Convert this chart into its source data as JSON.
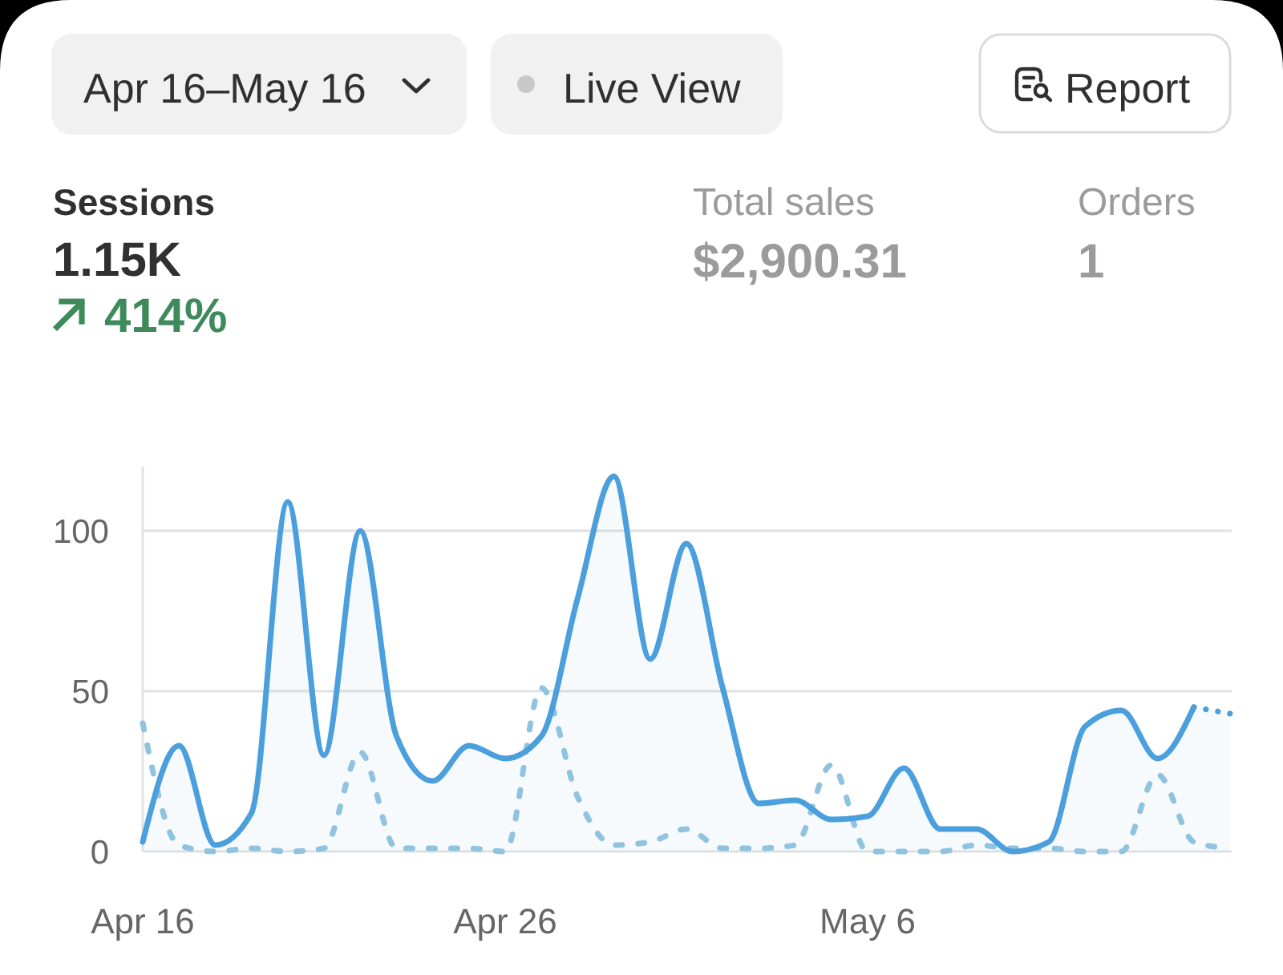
{
  "chart_data": {
    "type": "line",
    "title": "Sessions",
    "annotations": [
      "Apr 16–May 16",
      "Live View",
      "Report",
      "1.15K",
      "414%",
      "Total sales",
      "$2,900.31",
      "Orders",
      "1"
    ],
    "x": [
      "--04-16",
      "--04-17",
      "--04-18",
      "--04-19",
      "--04-20",
      "--04-21",
      "--04-22",
      "--04-23",
      "--04-24",
      "--04-25",
      "--04-26",
      "--04-27",
      "--04-28",
      "--04-29",
      "--04-30",
      "--05-01",
      "--05-02",
      "--05-03",
      "--05-04",
      "--05-05",
      "--05-06",
      "--05-07",
      "--05-08",
      "--05-09",
      "--05-10",
      "--05-11",
      "--05-12",
      "--05-13",
      "--05-14",
      "--05-15",
      "--05-16"
    ],
    "xlim": [
      "--04-16",
      "--05-16"
    ],
    "xticks": [
      {
        "value": "--04-16",
        "label": "Apr 16"
      },
      {
        "value": "--04-26",
        "label": "Apr 26"
      },
      {
        "value": "--05-06",
        "label": "May 6"
      }
    ],
    "ylim": [
      0,
      120
    ],
    "yticks": [
      0,
      50,
      100
    ],
    "grid": "y",
    "series": [
      {
        "type": "line",
        "color": "#8fc3df",
        "line_style": "dashed",
        "values": [
          40,
          2,
          0,
          1,
          0,
          1,
          31,
          1,
          1,
          1,
          0,
          51,
          17,
          2,
          3,
          7,
          1,
          1,
          2,
          27,
          0,
          0,
          0,
          2,
          1,
          1,
          0,
          0,
          24,
          3,
          1
        ]
      },
      {
        "type": "area",
        "color": "#4a9fdc",
        "line_style": "solid",
        "values": [
          3,
          33,
          2,
          12,
          109,
          30,
          100,
          36,
          22,
          33,
          29,
          36,
          79,
          117,
          60,
          96,
          51,
          15,
          16,
          10,
          11,
          26,
          7,
          7,
          0,
          3,
          39,
          44,
          29,
          45,
          null
        ]
      },
      {
        "type": "area",
        "color": "#4a9fdc",
        "line_style": "dotted",
        "values": [
          null,
          null,
          null,
          null,
          null,
          null,
          null,
          null,
          null,
          null,
          null,
          null,
          null,
          null,
          null,
          null,
          null,
          null,
          null,
          null,
          null,
          null,
          null,
          null,
          null,
          null,
          null,
          null,
          null,
          45,
          43
        ]
      }
    ]
  }
}
